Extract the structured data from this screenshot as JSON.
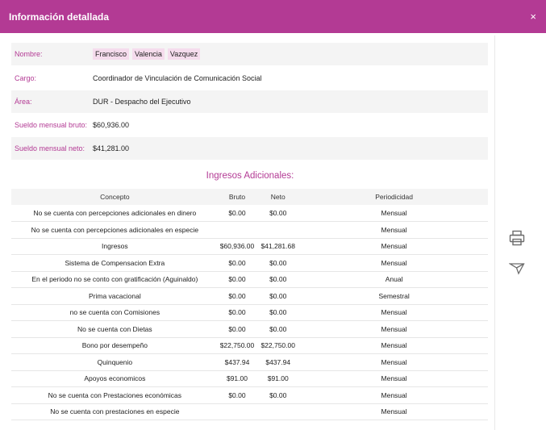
{
  "modal": {
    "title": "Información detallada",
    "close_label": "×"
  },
  "info": {
    "nombre_label": "Nombre:",
    "nombre": [
      "Francisco",
      "Valencia",
      "Vazquez"
    ],
    "cargo_label": "Cargo:",
    "cargo": "Coordinador de Vinculación de Comunicación Social",
    "area_label": "Área:",
    "area": "DUR - Despacho del Ejecutivo",
    "bruto_label": "Sueldo mensual bruto:",
    "bruto": "$60,936.00",
    "neto_label": "Sueldo mensual neto:",
    "neto": "$41,281.00"
  },
  "ingresos": {
    "title": "Ingresos Adicionales:",
    "headers": [
      "Concepto",
      "Bruto",
      "Neto",
      "Periodicidad"
    ],
    "rows": [
      [
        "No se cuenta con percepciones adicionales en dinero",
        "$0.00",
        "$0.00",
        "Mensual"
      ],
      [
        "No se cuenta con percepciones adicionales en especie",
        "",
        "",
        "Mensual"
      ],
      [
        "Ingresos",
        "$60,936.00",
        "$41,281.68",
        "Mensual"
      ],
      [
        "Sistema de Compensacion Extra",
        "$0.00",
        "$0.00",
        "Mensual"
      ],
      [
        "En el periodo no se conto con gratificación (Aguinaldo)",
        "$0.00",
        "$0.00",
        "Anual"
      ],
      [
        "Prima vacacional",
        "$0.00",
        "$0.00",
        "Semestral"
      ],
      [
        "no se cuenta con Comisiones",
        "$0.00",
        "$0.00",
        "Mensual"
      ],
      [
        "No se cuenta con Dietas",
        "$0.00",
        "$0.00",
        "Mensual"
      ],
      [
        "Bono por desempeño",
        "$22,750.00",
        "$22,750.00",
        "Mensual"
      ],
      [
        "Quinquenio",
        "$437.94",
        "$437.94",
        "Mensual"
      ],
      [
        "Apoyos economicos",
        "$91.00",
        "$91.00",
        "Mensual"
      ],
      [
        "No se cuenta con Prestaciones económicas",
        "$0.00",
        "$0.00",
        "Mensual"
      ],
      [
        "No se cuenta con prestaciones en especie",
        "",
        "",
        "Mensual"
      ]
    ]
  },
  "side_actions": {
    "print_icon": "printer-icon",
    "send_icon": "paper-plane-icon"
  },
  "colors": {
    "accent": "#b33a94",
    "chip": "#f5dced",
    "shade": "#f4f4f4"
  }
}
